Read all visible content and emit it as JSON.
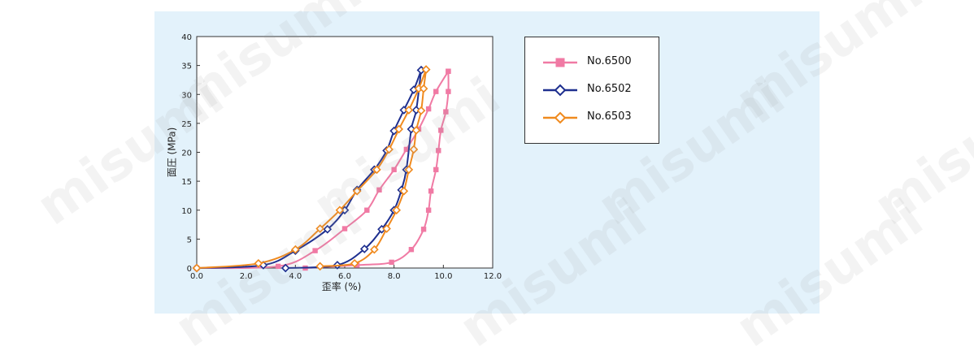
{
  "watermark": "misumi",
  "colors": {
    "No.6500": "#f07aa4",
    "No.6502": "#1e2f8f",
    "No.6503": "#f08a1e"
  },
  "chart_data": {
    "type": "line",
    "xlabel": "歪率 (%)",
    "ylabel": "面圧 (MPa)",
    "xlim": [
      0,
      12
    ],
    "ylim": [
      0,
      40
    ],
    "xticks": [
      "0.0",
      "2.0",
      "4.0",
      "6.0",
      "8.0",
      "10.0",
      "12.0"
    ],
    "yticks": [
      "0",
      "5",
      "10",
      "15",
      "20",
      "25",
      "30",
      "35",
      "40"
    ],
    "legend_position": "right",
    "series": [
      {
        "name": "No.6500",
        "marker": "square",
        "loading": [
          [
            0.0,
            0.0
          ],
          [
            3.3,
            0.3
          ],
          [
            4.8,
            3.0
          ],
          [
            6.0,
            6.8
          ],
          [
            6.9,
            10.0
          ],
          [
            7.4,
            13.5
          ],
          [
            8.0,
            17.0
          ],
          [
            8.5,
            20.5
          ],
          [
            9.0,
            24.0
          ],
          [
            9.4,
            27.5
          ],
          [
            9.7,
            30.5
          ],
          [
            10.2,
            34.0
          ]
        ],
        "unloading": [
          [
            10.2,
            34.0
          ],
          [
            10.2,
            30.5
          ],
          [
            10.1,
            27.0
          ],
          [
            9.9,
            23.8
          ],
          [
            9.8,
            20.3
          ],
          [
            9.7,
            17.0
          ],
          [
            9.5,
            13.3
          ],
          [
            9.4,
            10.0
          ],
          [
            9.2,
            6.7
          ],
          [
            8.7,
            3.2
          ],
          [
            7.9,
            1.0
          ],
          [
            6.5,
            0.5
          ],
          [
            4.4,
            0.0
          ]
        ]
      },
      {
        "name": "No.6502",
        "marker": "diamond",
        "loading": [
          [
            0.0,
            0.0
          ],
          [
            2.7,
            0.5
          ],
          [
            4.0,
            3.0
          ],
          [
            5.3,
            6.7
          ],
          [
            6.0,
            10.0
          ],
          [
            6.5,
            13.5
          ],
          [
            7.2,
            17.0
          ],
          [
            7.7,
            20.3
          ],
          [
            8.0,
            23.7
          ],
          [
            8.4,
            27.3
          ],
          [
            8.8,
            30.8
          ],
          [
            9.1,
            34.2
          ]
        ],
        "unloading": [
          [
            9.1,
            34.2
          ],
          [
            8.9,
            27.3
          ],
          [
            8.7,
            24.0
          ],
          [
            8.5,
            17.0
          ],
          [
            8.3,
            13.5
          ],
          [
            8.0,
            10.0
          ],
          [
            7.5,
            6.7
          ],
          [
            6.8,
            3.3
          ],
          [
            5.7,
            0.5
          ],
          [
            3.6,
            0.0
          ]
        ]
      },
      {
        "name": "No.6503",
        "marker": "diamond",
        "loading": [
          [
            0.0,
            0.0
          ],
          [
            2.5,
            0.8
          ],
          [
            4.0,
            3.2
          ],
          [
            5.0,
            6.8
          ],
          [
            5.8,
            10.0
          ],
          [
            6.5,
            13.3
          ],
          [
            7.3,
            17.0
          ],
          [
            7.8,
            20.5
          ],
          [
            8.2,
            24.0
          ],
          [
            8.6,
            27.3
          ],
          [
            9.0,
            31.0
          ],
          [
            9.3,
            34.3
          ]
        ],
        "unloading": [
          [
            9.3,
            34.3
          ],
          [
            9.2,
            31.0
          ],
          [
            9.1,
            27.2
          ],
          [
            8.9,
            23.8
          ],
          [
            8.8,
            20.5
          ],
          [
            8.6,
            17.0
          ],
          [
            8.4,
            13.3
          ],
          [
            8.1,
            10.0
          ],
          [
            7.7,
            6.8
          ],
          [
            7.2,
            3.2
          ],
          [
            6.4,
            0.8
          ],
          [
            5.0,
            0.3
          ]
        ]
      }
    ]
  }
}
